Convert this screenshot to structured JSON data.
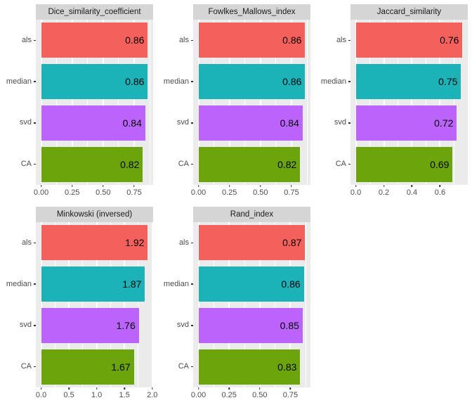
{
  "figure": {
    "kind": "faceted-bar-chart-grid",
    "background": "#FFFFFF"
  },
  "palette": {
    "als": "#F4605B",
    "median": "#1BB3B7",
    "svd": "#BB63FB",
    "CA": "#6CA50B"
  },
  "theme": {
    "panel_bg": "#EBEBEB",
    "strip_bg": "#D5D5D5",
    "grid_color": "#FFFFFF",
    "axis_text_color": "#4D4D4D",
    "strip_text_color": "#1A1A1A",
    "value_text_color": "#000000",
    "tick_color": "#333333"
  },
  "chart_data": [
    {
      "type": "bar",
      "orientation": "horizontal",
      "title": "Dice_similarity_coefficient",
      "categories": [
        "als",
        "median",
        "svd",
        "CA"
      ],
      "values": [
        0.86,
        0.86,
        0.84,
        0.82
      ],
      "value_labels": [
        "0.86",
        "0.86",
        "0.84",
        "0.82"
      ],
      "xticks": [
        0,
        0.25,
        0.5,
        0.75
      ],
      "xtick_labels": [
        "0.00",
        "0.25",
        "0.50",
        "0.75"
      ],
      "xminor": [
        0.125,
        0.375,
        0.625,
        0.875
      ],
      "xlim": [
        -0.043,
        0.903
      ],
      "grid": true,
      "legend": "none",
      "row": 0,
      "col": 0
    },
    {
      "type": "bar",
      "orientation": "horizontal",
      "title": "Fowlkes_Mallows_index",
      "categories": [
        "als",
        "median",
        "svd",
        "CA"
      ],
      "values": [
        0.86,
        0.86,
        0.84,
        0.82
      ],
      "value_labels": [
        "0.86",
        "0.86",
        "0.84",
        "0.82"
      ],
      "xticks": [
        0,
        0.25,
        0.5,
        0.75
      ],
      "xtick_labels": [
        "0.00",
        "0.25",
        "0.50",
        "0.75"
      ],
      "xminor": [
        0.125,
        0.375,
        0.625,
        0.875
      ],
      "xlim": [
        -0.043,
        0.903
      ],
      "grid": true,
      "legend": "none",
      "row": 0,
      "col": 1
    },
    {
      "type": "bar",
      "orientation": "horizontal",
      "title": "Jaccard_similarity",
      "categories": [
        "als",
        "median",
        "svd",
        "CA"
      ],
      "values": [
        0.76,
        0.75,
        0.72,
        0.69
      ],
      "value_labels": [
        "0.76",
        "0.75",
        "0.72",
        "0.69"
      ],
      "xticks": [
        0,
        0.2,
        0.4,
        0.6
      ],
      "xtick_labels": [
        "0.0",
        "0.2",
        "0.4",
        "0.6"
      ],
      "xminor": [
        0.1,
        0.3,
        0.5,
        0.7
      ],
      "xlim": [
        -0.038,
        0.798
      ],
      "grid": true,
      "legend": "none",
      "row": 0,
      "col": 2
    },
    {
      "type": "bar",
      "orientation": "horizontal",
      "title": "Minkowski (inversed)",
      "categories": [
        "als",
        "median",
        "svd",
        "CA"
      ],
      "values": [
        1.92,
        1.87,
        1.76,
        1.67
      ],
      "value_labels": [
        "1.92",
        "1.87",
        "1.76",
        "1.67"
      ],
      "xticks": [
        0,
        0.5,
        1,
        1.5,
        2
      ],
      "xtick_labels": [
        "0.0",
        "0.5",
        "1.0",
        "1.5",
        "2.0"
      ],
      "xminor": [
        0.25,
        0.75,
        1.25,
        1.75
      ],
      "xlim": [
        -0.096,
        2.016
      ],
      "grid": true,
      "legend": "none",
      "row": 1,
      "col": 0
    },
    {
      "type": "bar",
      "orientation": "horizontal",
      "title": "Rand_index",
      "categories": [
        "als",
        "median",
        "svd",
        "CA"
      ],
      "values": [
        0.87,
        0.86,
        0.85,
        0.83
      ],
      "value_labels": [
        "0.87",
        "0.86",
        "0.85",
        "0.83"
      ],
      "xticks": [
        0,
        0.25,
        0.5,
        0.75
      ],
      "xtick_labels": [
        "0.00",
        "0.25",
        "0.50",
        "0.75"
      ],
      "xminor": [
        0.125,
        0.375,
        0.625,
        0.875
      ],
      "xlim": [
        -0.0435,
        0.9135
      ],
      "grid": true,
      "legend": "none",
      "row": 1,
      "col": 1
    }
  ]
}
